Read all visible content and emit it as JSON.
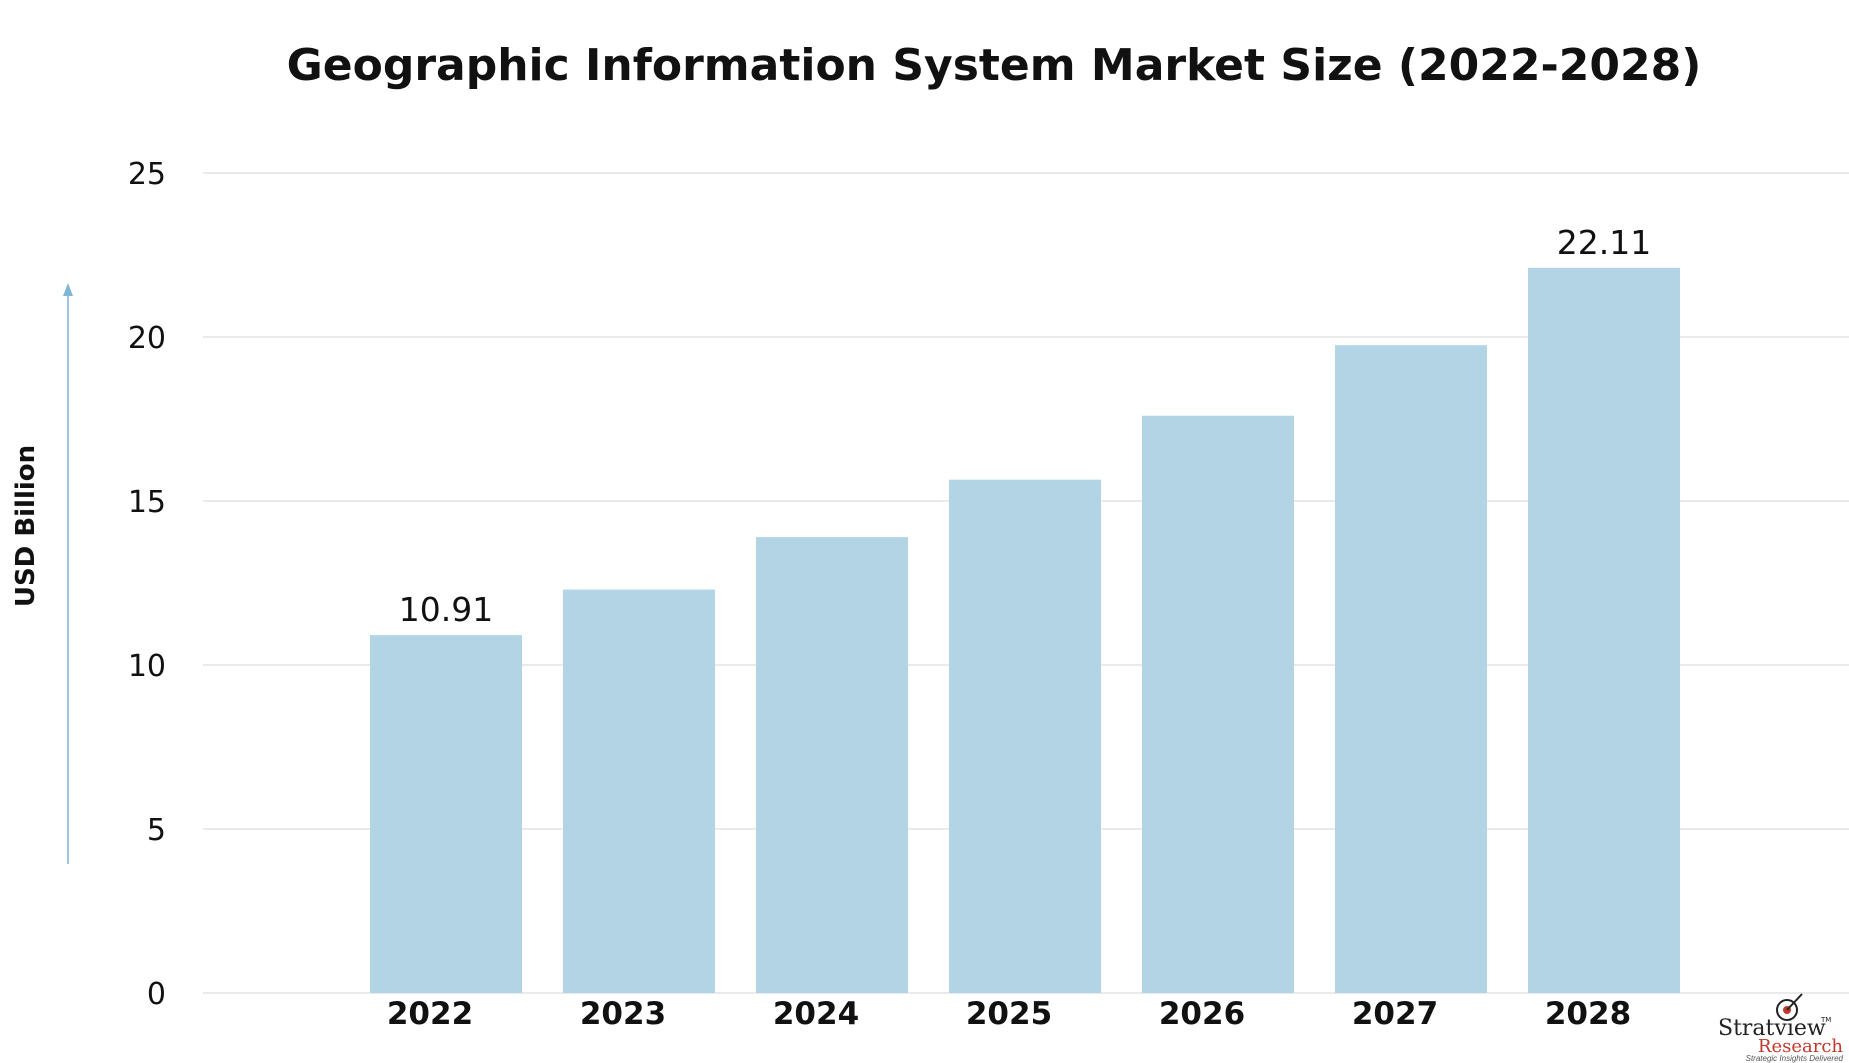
{
  "chart_data": {
    "type": "bar",
    "title": "Geographic Information System Market Size (2022-2028)",
    "ylabel": "USD Billion",
    "xlabel": "",
    "categories": [
      "2022",
      "2023",
      "2024",
      "2025",
      "2026",
      "2027",
      "2028"
    ],
    "values": [
      10.91,
      12.3,
      13.9,
      15.65,
      17.6,
      19.75,
      22.11
    ],
    "data_labels": [
      "10.91",
      "",
      "",
      "",
      "",
      "",
      "22.11"
    ],
    "yticks": [
      "0",
      "5",
      "10",
      "15",
      "20",
      "25"
    ],
    "ylim": [
      0,
      25
    ],
    "grid": true,
    "bar_color": "#b3d4e5",
    "grid_color": "#e3e3e3",
    "axis_arrow_color": "#7fb6d6"
  },
  "logo": {
    "name_a": "Stratview",
    "tm": "TM",
    "name_b": "Research",
    "tagline": "Strategic Insights Delivered"
  }
}
